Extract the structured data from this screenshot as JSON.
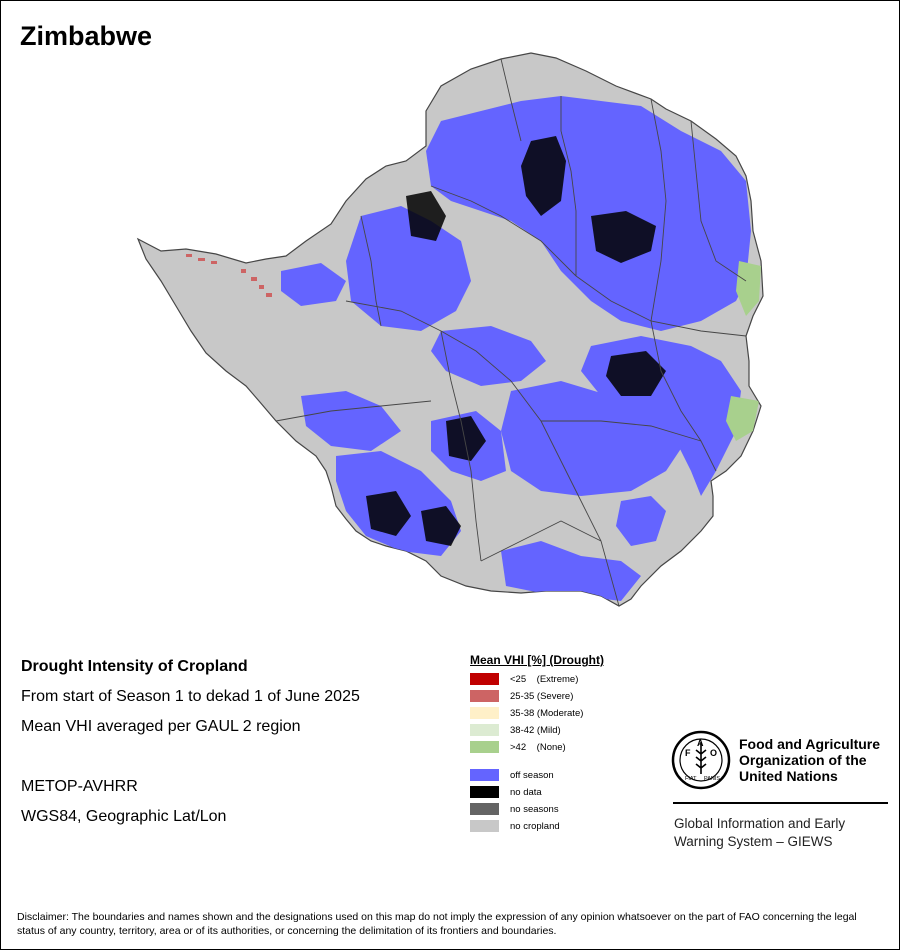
{
  "map": {
    "title": "Zimbabwe",
    "colors": {
      "background_country": "#c8c8c8",
      "off_season": "#6464ff",
      "no_data": "#000000",
      "severe": "#cd6464",
      "none": "#a8d08d",
      "boundary": "#464646"
    }
  },
  "info": {
    "title": "Drought Intensity of Cropland",
    "period": "From start of Season 1 to dekad 1 of June 2025",
    "method": "Mean VHI averaged per GAUL 2 region",
    "sensor": "METOP-AVHRR",
    "projection": "WGS84, Geographic Lat/Lon"
  },
  "legend": {
    "title": "Mean VHI [%] (Drought)",
    "classes": [
      {
        "label": "<25    (Extreme)",
        "color": "#c00000"
      },
      {
        "label": "25-35 (Severe)",
        "color": "#cd6464"
      },
      {
        "label": "35-38 (Moderate)",
        "color": "#fff0c8"
      },
      {
        "label": "38-42 (Mild)",
        "color": "#dcebd2"
      },
      {
        "label": ">42    (None)",
        "color": "#a8d08d"
      }
    ],
    "other": [
      {
        "label": "off season",
        "color": "#6464ff"
      },
      {
        "label": "no data",
        "color": "#000000"
      },
      {
        "label": "no seasons",
        "color": "#646464"
      },
      {
        "label": "no cropland",
        "color": "#c8c8c8"
      }
    ]
  },
  "org": {
    "fao_name": "Food and Agriculture Organization of the United Nations",
    "giews_name": "Global Information and Early Warning System – GIEWS",
    "logo_text": "FAO",
    "logo_motto": "FIAT PANIS"
  },
  "disclaimer": "Disclaimer: The boundaries and names shown and the designations used on this map do not imply the expression of any opinion whatsoever on the part of FAO concerning the legal status of any country, territory, area or of its authorities, or concerning the delimitation of its frontiers and boundaries."
}
